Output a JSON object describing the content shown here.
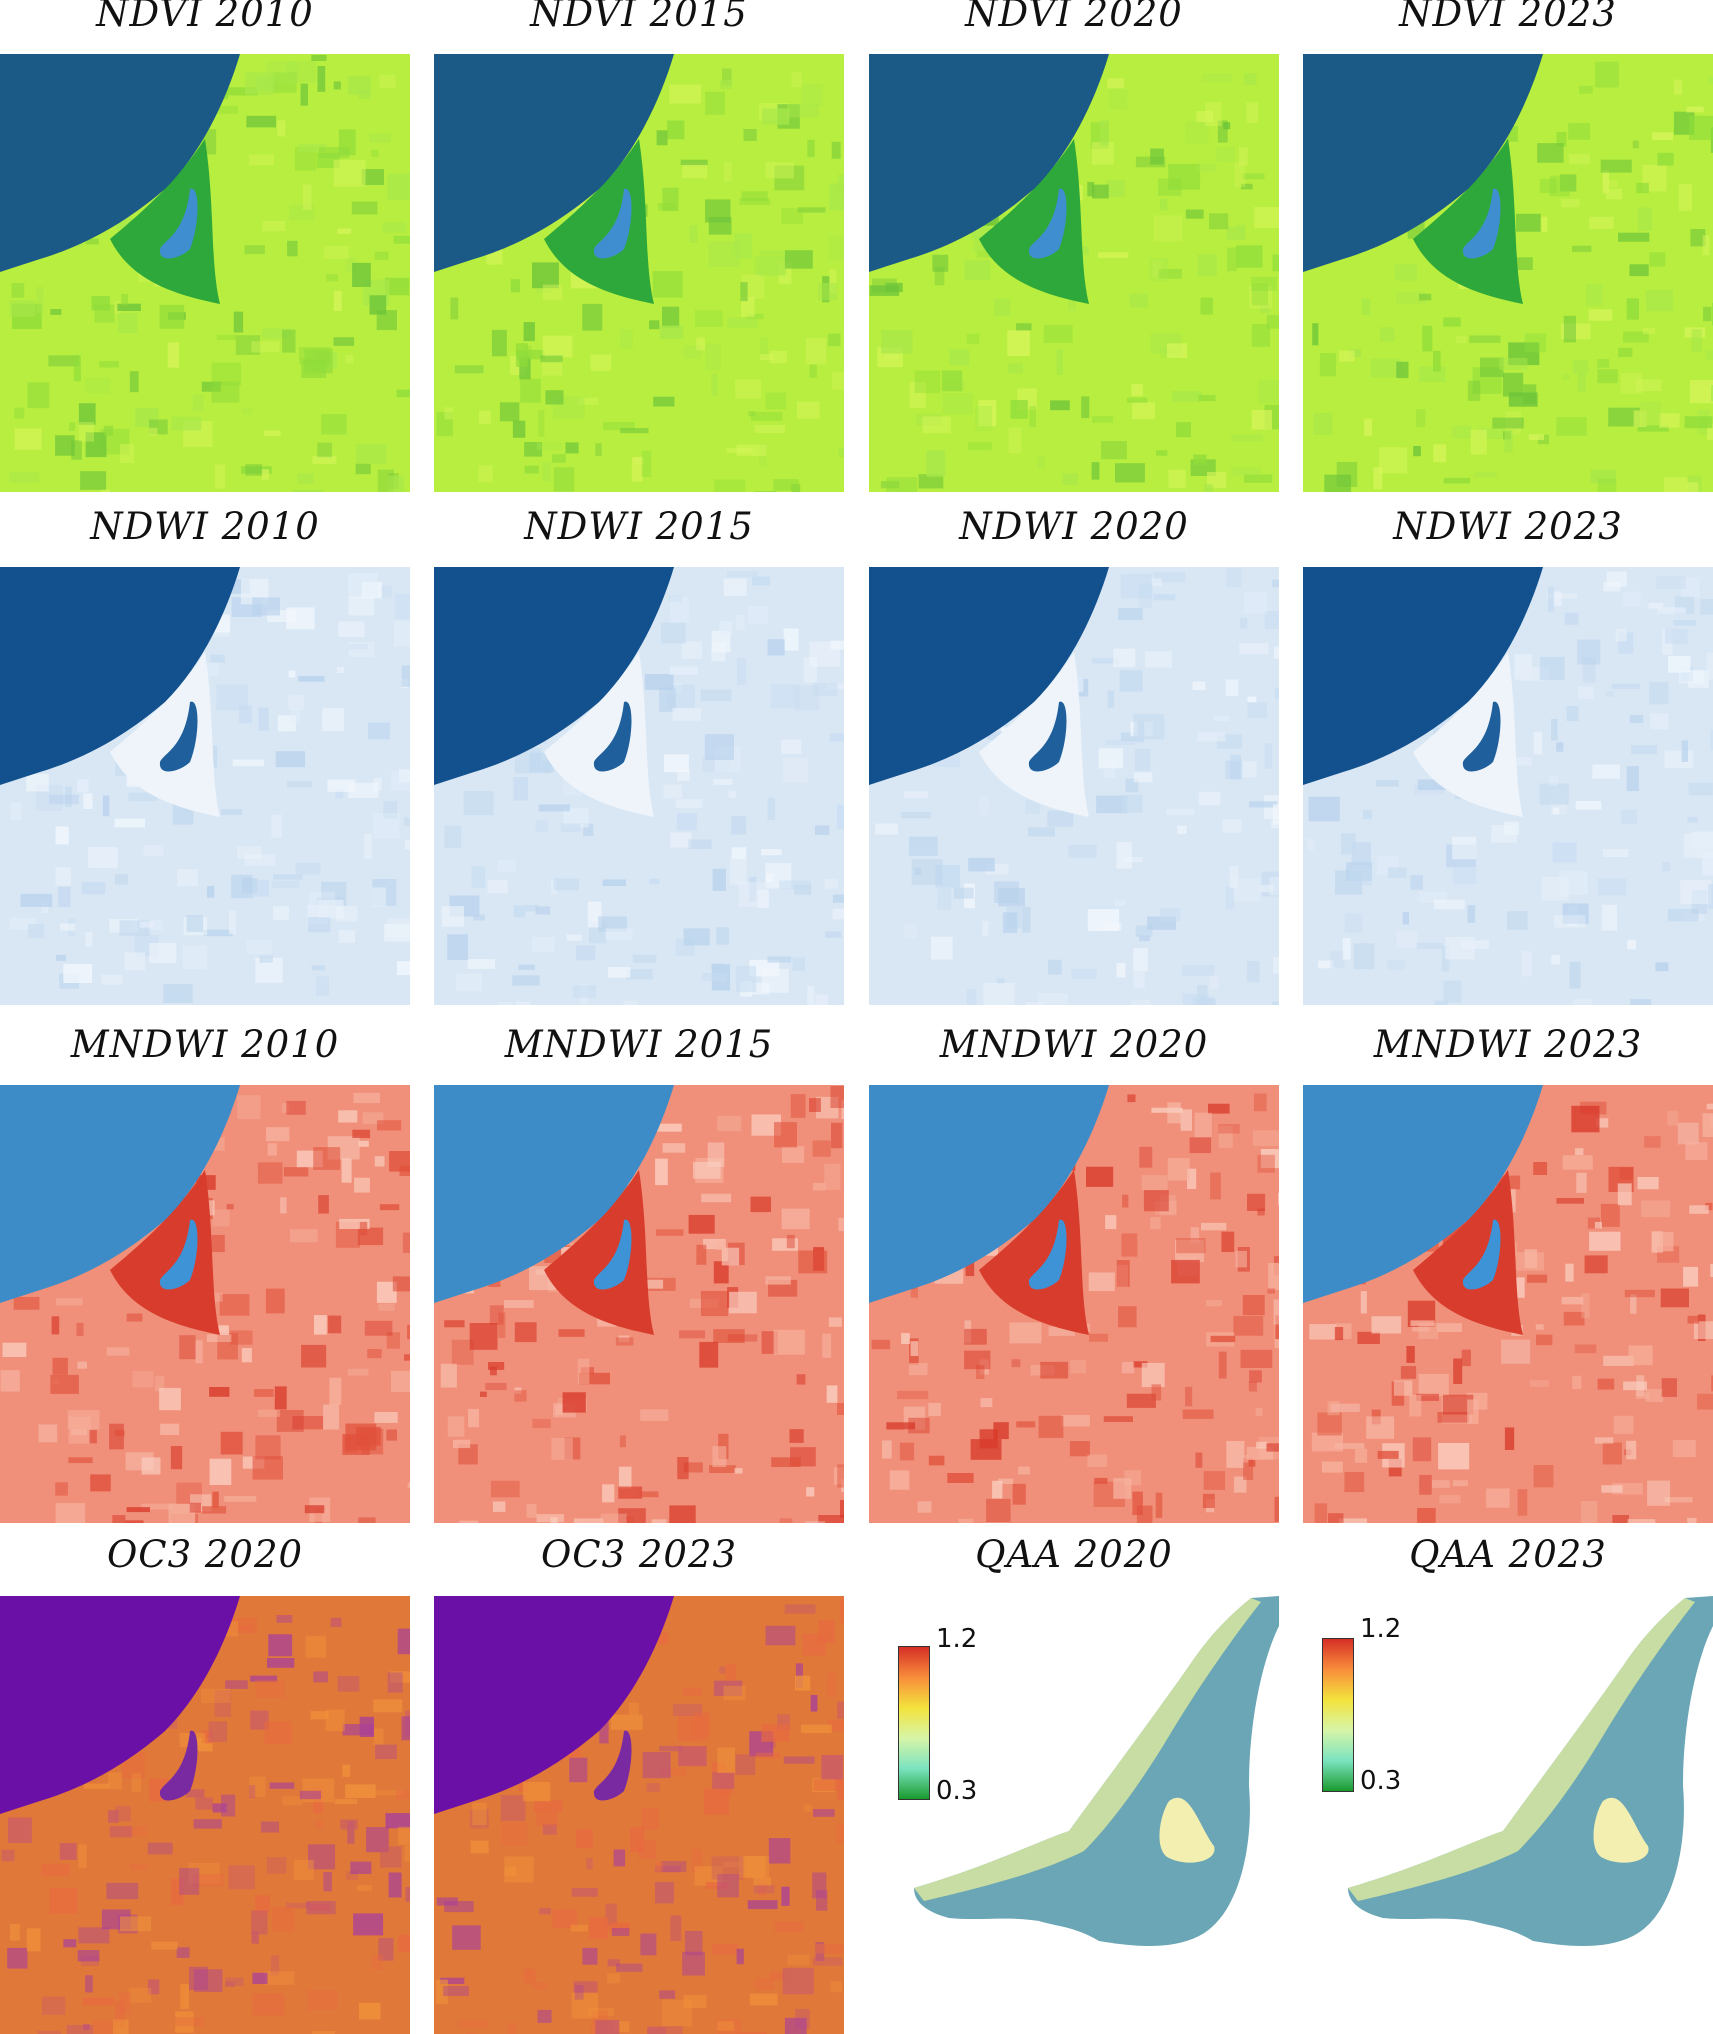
{
  "rows": [
    {
      "name": "ndvi",
      "palette": "green",
      "titles": [
        "NDVI 2010",
        "NDVI 2015",
        "NDVI 2020",
        "NDVI 2023"
      ]
    },
    {
      "name": "ndwi",
      "palette": "blue",
      "titles": [
        "NDWI 2010",
        "NDWI 2015",
        "NDWI 2020",
        "NDWI 2023"
      ]
    },
    {
      "name": "mndwi",
      "palette": "red",
      "titles": [
        "MNDWI 2010",
        "MNDWI 2015",
        "MNDWI 2020",
        "MNDWI 2023"
      ]
    },
    {
      "name": "chl",
      "palette": "mixed",
      "titles": [
        "OC3 2020",
        "OC3 2023",
        "QAA 2020",
        "QAA 2023"
      ]
    }
  ],
  "qaa_colorbar": {
    "max": "1.2",
    "min": "0.3"
  },
  "colors": {
    "ndvi_sea": "#1b5a86",
    "ndvi_land": "#b7ee3f",
    "ndvi_wetland": "#2ea83a",
    "ndvi_lake": "#3f8fd0",
    "ndwi_sea": "#12508e",
    "ndwi_land": "#d9e7f5",
    "ndwi_wetland": "#eef4fa",
    "ndwi_lake": "#1f5f9c",
    "mndwi_sea": "#3d8cc8",
    "mndwi_land": "#f0907a",
    "mndwi_wetland": "#d73c2c",
    "mndwi_lake": "#3e93d6",
    "oc3_sea": "#6b10a6",
    "oc3_land": "#e0783a",
    "qaa_fill": "#6aa6b5",
    "qaa_edge": "#d8e6a0",
    "qaa_lake": "#f2efb0"
  }
}
